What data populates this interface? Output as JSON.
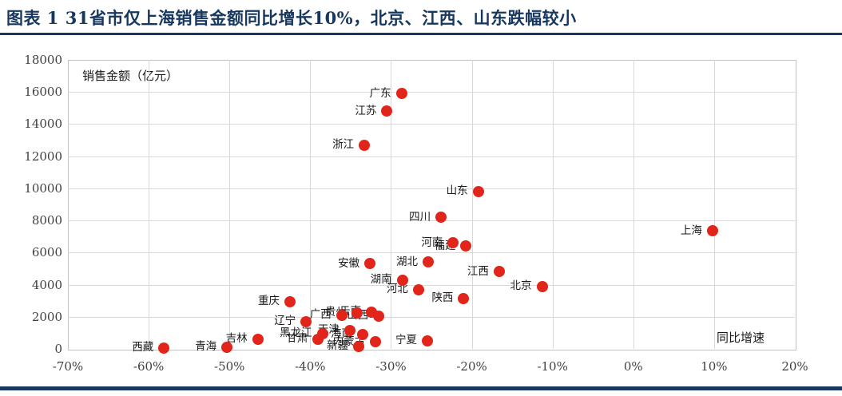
{
  "title": "图表 1  31省市仅上海销售金额同比增长10%，北京、江西、山东跌幅较小",
  "colors": {
    "title_navy": "#17375e",
    "rule_navy": "#17375e",
    "dot_red": "#e1251b",
    "gridline_gray": "#d9d9d9",
    "axis_text_gray": "#404040",
    "label_black": "#1a1a1a"
  },
  "chart_data": {
    "type": "scatter",
    "title": "",
    "xlabel": "同比增速",
    "ylabel": "销售金额（亿元）",
    "xlim": [
      -70,
      20
    ],
    "ylim": [
      0,
      18000
    ],
    "x_ticks": [
      -70,
      -60,
      -50,
      -40,
      -30,
      -20,
      -10,
      0,
      10,
      20
    ],
    "x_tick_labels": [
      "-70%",
      "-60%",
      "-50%",
      "-40%",
      "-30%",
      "-20%",
      "-10%",
      "0%",
      "10%",
      "20%"
    ],
    "y_ticks": [
      0,
      2000,
      4000,
      6000,
      8000,
      10000,
      12000,
      14000,
      16000,
      18000
    ],
    "grid": true,
    "legend": "none",
    "marker_color": "#e1251b",
    "points": [
      {
        "name": "广东",
        "x": -28.7,
        "y": 15900
      },
      {
        "name": "江苏",
        "x": -30.5,
        "y": 14800
      },
      {
        "name": "浙江",
        "x": -33.3,
        "y": 12700
      },
      {
        "name": "山东",
        "x": -19.2,
        "y": 9800
      },
      {
        "name": "四川",
        "x": -23.8,
        "y": 8200
      },
      {
        "name": "上海",
        "x": 9.8,
        "y": 7350
      },
      {
        "name": "河南",
        "x": -22.3,
        "y": 6600
      },
      {
        "name": "福建",
        "x": -20.7,
        "y": 6400
      },
      {
        "name": "湖北",
        "x": -25.4,
        "y": 5400
      },
      {
        "name": "安徽",
        "x": -32.6,
        "y": 5300
      },
      {
        "name": "江西",
        "x": -16.6,
        "y": 4800
      },
      {
        "name": "湖南",
        "x": -28.6,
        "y": 4300
      },
      {
        "name": "北京",
        "x": -11.3,
        "y": 3900
      },
      {
        "name": "河北",
        "x": -26.6,
        "y": 3700
      },
      {
        "name": "陕西",
        "x": -21.0,
        "y": 3150
      },
      {
        "name": "重庆",
        "x": -42.5,
        "y": 2950
      },
      {
        "name": "云南",
        "x": -32.4,
        "y": 2300
      },
      {
        "name": "贵州",
        "x": -34.2,
        "y": 2250
      },
      {
        "name": "广西",
        "x": -36.1,
        "y": 2100
      },
      {
        "name": "山西",
        "x": -31.5,
        "y": 2050
      },
      {
        "name": "辽宁",
        "x": -40.5,
        "y": 1700
      },
      {
        "name": "天津",
        "x": -35.1,
        "y": 1150
      },
      {
        "name": "黑龙江",
        "x": -38.5,
        "y": 950
      },
      {
        "name": "海南",
        "x": -33.5,
        "y": 900
      },
      {
        "name": "吉林",
        "x": -46.5,
        "y": 600
      },
      {
        "name": "甘肃",
        "x": -39.0,
        "y": 600
      },
      {
        "name": "宁夏",
        "x": -25.5,
        "y": 500
      },
      {
        "name": "内蒙古",
        "x": -31.9,
        "y": 430
      },
      {
        "name": "新疆",
        "x": -34.0,
        "y": 150
      },
      {
        "name": "青海",
        "x": -50.3,
        "y": 100
      },
      {
        "name": "西藏",
        "x": -58.1,
        "y": 50
      }
    ]
  }
}
